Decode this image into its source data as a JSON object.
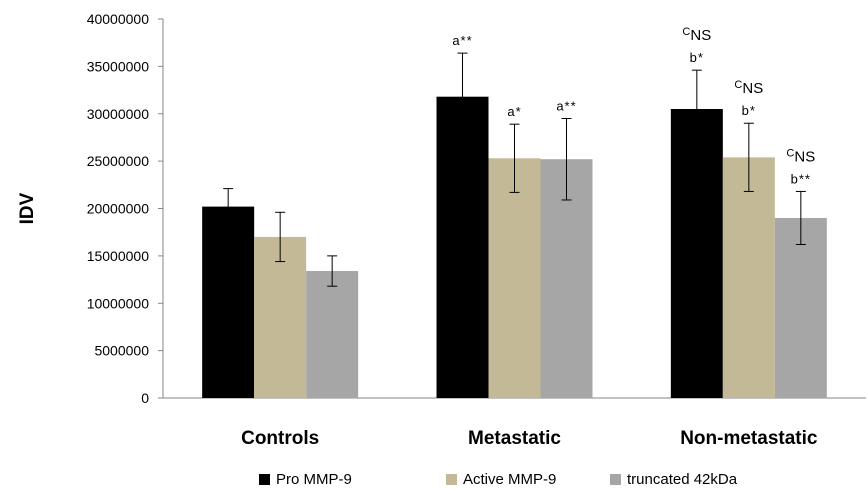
{
  "chart_data": {
    "type": "bar",
    "ylabel": "IDV",
    "xlabel": "",
    "title": "",
    "ylim": [
      0,
      40000000
    ],
    "yticks": [
      0,
      5000000,
      10000000,
      15000000,
      20000000,
      25000000,
      30000000,
      35000000,
      40000000
    ],
    "ytick_labels": [
      "0",
      "5000000",
      "10000000",
      "15000000",
      "20000000",
      "25000000",
      "30000000",
      "35000000",
      "40000000"
    ],
    "grid": false,
    "legend_position": "bottom",
    "categories": [
      "Controls",
      "Metastatic",
      "Non-metastatic"
    ],
    "series": [
      {
        "name": "Pro MMP-9",
        "color": "#000000",
        "values": [
          20200000,
          31800000,
          30500000
        ],
        "errors": [
          1900000,
          4600000,
          4100000
        ]
      },
      {
        "name": "Active MMP-9",
        "color": "#c4b996",
        "values": [
          17000000,
          25300000,
          25400000
        ],
        "errors": [
          2600000,
          3600000,
          3600000
        ]
      },
      {
        "name": "truncated 42kDa",
        "color": "#a6a6a6",
        "values": [
          13400000,
          25200000,
          19000000
        ],
        "errors": [
          1600000,
          4300000,
          2800000
        ]
      }
    ],
    "annotations": [
      {
        "category": 1,
        "series": 0,
        "lines": [
          {
            "text": "a**"
          }
        ]
      },
      {
        "category": 1,
        "series": 1,
        "lines": [
          {
            "text": "a*"
          }
        ]
      },
      {
        "category": 1,
        "series": 2,
        "lines": [
          {
            "text": "a**"
          }
        ]
      },
      {
        "category": 2,
        "series": 0,
        "lines": [
          {
            "sup": "C",
            "text": "NS"
          },
          {
            "text": "b*"
          }
        ]
      },
      {
        "category": 2,
        "series": 1,
        "lines": [
          {
            "sup": "C",
            "text": "NS"
          },
          {
            "text": "b*"
          }
        ]
      },
      {
        "category": 2,
        "series": 2,
        "lines": [
          {
            "sup": "C",
            "text": "NS"
          },
          {
            "text": "b**"
          }
        ]
      }
    ]
  }
}
